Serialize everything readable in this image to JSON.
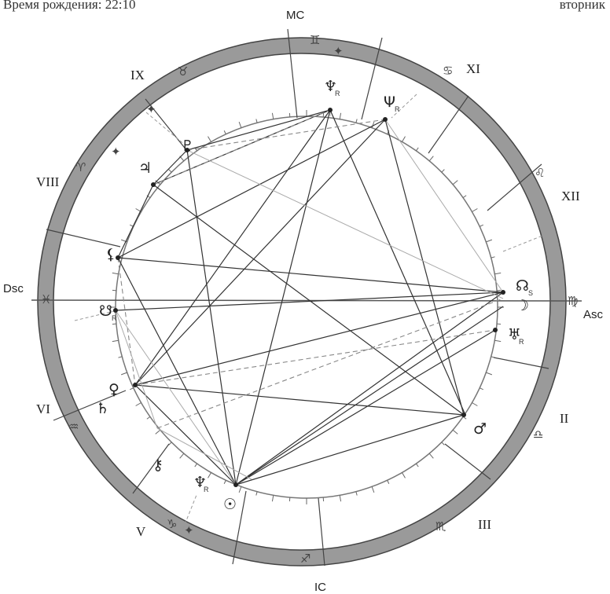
{
  "header": {
    "left_text": "Время рождения: 22:10",
    "right_text": "вторник"
  },
  "axes": {
    "mc": "MC",
    "ic": "IC",
    "dsc": "Dsc",
    "asc": "Asc"
  },
  "houses": [
    {
      "label": "IX"
    },
    {
      "label": "XI"
    },
    {
      "label": "VIII"
    },
    {
      "label": "XII"
    },
    {
      "label": "VI"
    },
    {
      "label": "II"
    },
    {
      "label": "V"
    },
    {
      "label": "III"
    }
  ],
  "signs": [
    {
      "glyph": "♊"
    },
    {
      "glyph": "♉"
    },
    {
      "glyph": "♋"
    },
    {
      "glyph": "♌"
    },
    {
      "glyph": "♈"
    },
    {
      "glyph": "♓"
    },
    {
      "glyph": "♍"
    },
    {
      "glyph": "♒"
    },
    {
      "glyph": "♎"
    },
    {
      "glyph": "♑"
    },
    {
      "glyph": "♏"
    },
    {
      "glyph": "♐"
    }
  ],
  "planets": [
    {
      "glyph": "♆",
      "sub": "R"
    },
    {
      "glyph": "Ψ",
      "sub": "R"
    },
    {
      "glyph": "♇",
      "sub": ""
    },
    {
      "glyph": "♃",
      "sub": ""
    },
    {
      "glyph": "⚸",
      "sub": ""
    },
    {
      "glyph": "☋",
      "sub": "R"
    },
    {
      "glyph": "♀",
      "sub": ""
    },
    {
      "glyph": "♄",
      "sub": ""
    },
    {
      "glyph": "⚷",
      "sub": ""
    },
    {
      "glyph": "♆",
      "sub": "R"
    },
    {
      "glyph": "☉",
      "sub": ""
    },
    {
      "glyph": "☊",
      "sub": "S"
    },
    {
      "glyph": "☽",
      "sub": ""
    },
    {
      "glyph": "♅",
      "sub": "R"
    },
    {
      "glyph": "♂",
      "sub": ""
    }
  ]
}
